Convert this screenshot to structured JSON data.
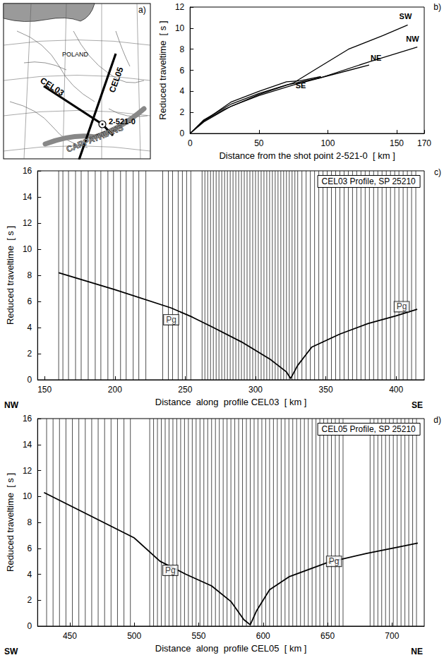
{
  "map": {
    "panel_label": "a)",
    "country": "POLAND",
    "profiles": [
      "CEL03",
      "CEL05"
    ],
    "shot_point": "2-521-0",
    "mountains": "CARPATHIANS"
  },
  "chart_data": [
    {
      "type": "line",
      "panel_label": "b)",
      "x_label": "Distance from the shot point 2-521-0  [ km ]",
      "y_label": "Reduced traveltime  [ s ]",
      "xlim": [
        0,
        170
      ],
      "xticks": [
        0,
        50,
        100,
        150
      ],
      "ylim": [
        0,
        12
      ],
      "yticks": [
        0,
        2,
        4,
        6,
        8,
        10,
        12
      ],
      "grid": false,
      "series": [
        {
          "name": "SW",
          "color": "#000000",
          "x": [
            0,
            10,
            25,
            50,
            75,
            90,
            115,
            140,
            158
          ],
          "values": [
            0,
            1.2,
            2.3,
            3.7,
            4.8,
            6.0,
            8.0,
            9.3,
            10.3
          ]
        },
        {
          "name": "NW",
          "color": "#000000",
          "x": [
            0,
            10,
            30,
            50,
            70,
            95,
            130,
            165
          ],
          "values": [
            0,
            1.3,
            2.8,
            3.8,
            4.6,
            5.3,
            6.8,
            8.2
          ]
        },
        {
          "name": "NE",
          "color": "#000000",
          "x": [
            0,
            10,
            30,
            50,
            75,
            95,
            130
          ],
          "values": [
            0,
            1.1,
            2.6,
            3.6,
            4.6,
            5.3,
            6.5
          ]
        },
        {
          "name": "SE",
          "color": "#000000",
          "x": [
            0,
            10,
            30,
            50,
            70,
            80,
            95
          ],
          "values": [
            0,
            1.2,
            3.0,
            4.0,
            4.9,
            5.0,
            5.4
          ]
        }
      ]
    },
    {
      "type": "record_section",
      "panel_label": "c)",
      "title": "CEL03 Profile, SP 25210",
      "x_label": "Distance  along  profile CEL03  [ km ]",
      "y_label": "Reduced traveltime  [ s ]",
      "direction_labels": [
        "NW",
        "SE"
      ],
      "xlim": [
        145,
        420
      ],
      "xticks": [
        150,
        200,
        250,
        300,
        350,
        400
      ],
      "ylim": [
        0,
        16
      ],
      "yticks": [
        0,
        2,
        4,
        6,
        8,
        10,
        12,
        14,
        16
      ],
      "grid": false,
      "traces": [
        160,
        163,
        167,
        172,
        176,
        181,
        186,
        190,
        195,
        199,
        204,
        208,
        213,
        217,
        222,
        234,
        238,
        241,
        245,
        248,
        251,
        254,
        262,
        264,
        266,
        268,
        270,
        272,
        274,
        276,
        278,
        280,
        282,
        284,
        286,
        288,
        290,
        292,
        294,
        296,
        298,
        300,
        302,
        304,
        306,
        308,
        310,
        312,
        314,
        316,
        318,
        320,
        322,
        324,
        326,
        328,
        330,
        333,
        336,
        339,
        342,
        345,
        348,
        351,
        354,
        357,
        360,
        363,
        366,
        369,
        372,
        375,
        378,
        381,
        384,
        387,
        390,
        393,
        396,
        399,
        402,
        405,
        408,
        411,
        414
      ],
      "curve": {
        "x": [
          160,
          200,
          240,
          255,
          270,
          290,
          310,
          322,
          325,
          330,
          340,
          360,
          380,
          400,
          415
        ],
        "values": [
          8.2,
          6.9,
          5.5,
          4.8,
          4.0,
          2.9,
          1.6,
          0.6,
          0.1,
          1.1,
          2.5,
          3.5,
          4.3,
          4.9,
          5.4
        ]
      },
      "annotations": [
        {
          "text": "Pg",
          "x": 240,
          "y": 4.6
        },
        {
          "text": "Pg",
          "x": 404,
          "y": 5.6
        }
      ]
    },
    {
      "type": "record_section",
      "panel_label": "d)",
      "title": "CEL05 Profile, SP 25210",
      "x_label": "Distance  along  profile CEL05  [ km ]",
      "y_label": "Reduced traveltime  [ s ]",
      "direction_labels": [
        "SW",
        "NE"
      ],
      "xlim": [
        425,
        725
      ],
      "xticks": [
        450,
        500,
        550,
        600,
        650,
        700
      ],
      "ylim": [
        0,
        16
      ],
      "yticks": [
        0,
        2,
        4,
        6,
        8,
        10,
        12,
        14,
        16
      ],
      "grid": false,
      "traces": [
        432,
        437,
        442,
        447,
        452,
        457,
        462,
        467,
        472,
        477,
        482,
        487,
        492,
        497,
        512,
        515,
        518,
        521,
        524,
        527,
        530,
        533,
        536,
        539,
        542,
        545,
        548,
        551,
        554,
        557,
        560,
        563,
        566,
        569,
        572,
        575,
        578,
        581,
        584,
        587,
        590,
        593,
        596,
        599,
        602,
        605,
        608,
        611,
        614,
        617,
        620,
        623,
        626,
        629,
        632,
        635,
        638,
        641,
        644,
        647,
        650,
        653,
        656,
        659,
        662,
        683,
        686,
        689,
        692,
        695,
        698,
        701,
        704,
        707,
        710,
        713,
        716,
        719
      ],
      "curve": {
        "x": [
          430,
          460,
          500,
          520,
          540,
          560,
          575,
          585,
          590,
          595,
          605,
          620,
          650,
          680,
          710,
          720
        ],
        "values": [
          10.3,
          8.8,
          6.8,
          5.0,
          4.0,
          3.1,
          1.9,
          0.5,
          0.1,
          1.2,
          2.8,
          3.8,
          4.9,
          5.6,
          6.2,
          6.4
        ]
      },
      "annotations": [
        {
          "text": "Pg",
          "x": 528,
          "y": 4.3
        },
        {
          "text": "Pg",
          "x": 655,
          "y": 5.0
        }
      ]
    }
  ]
}
